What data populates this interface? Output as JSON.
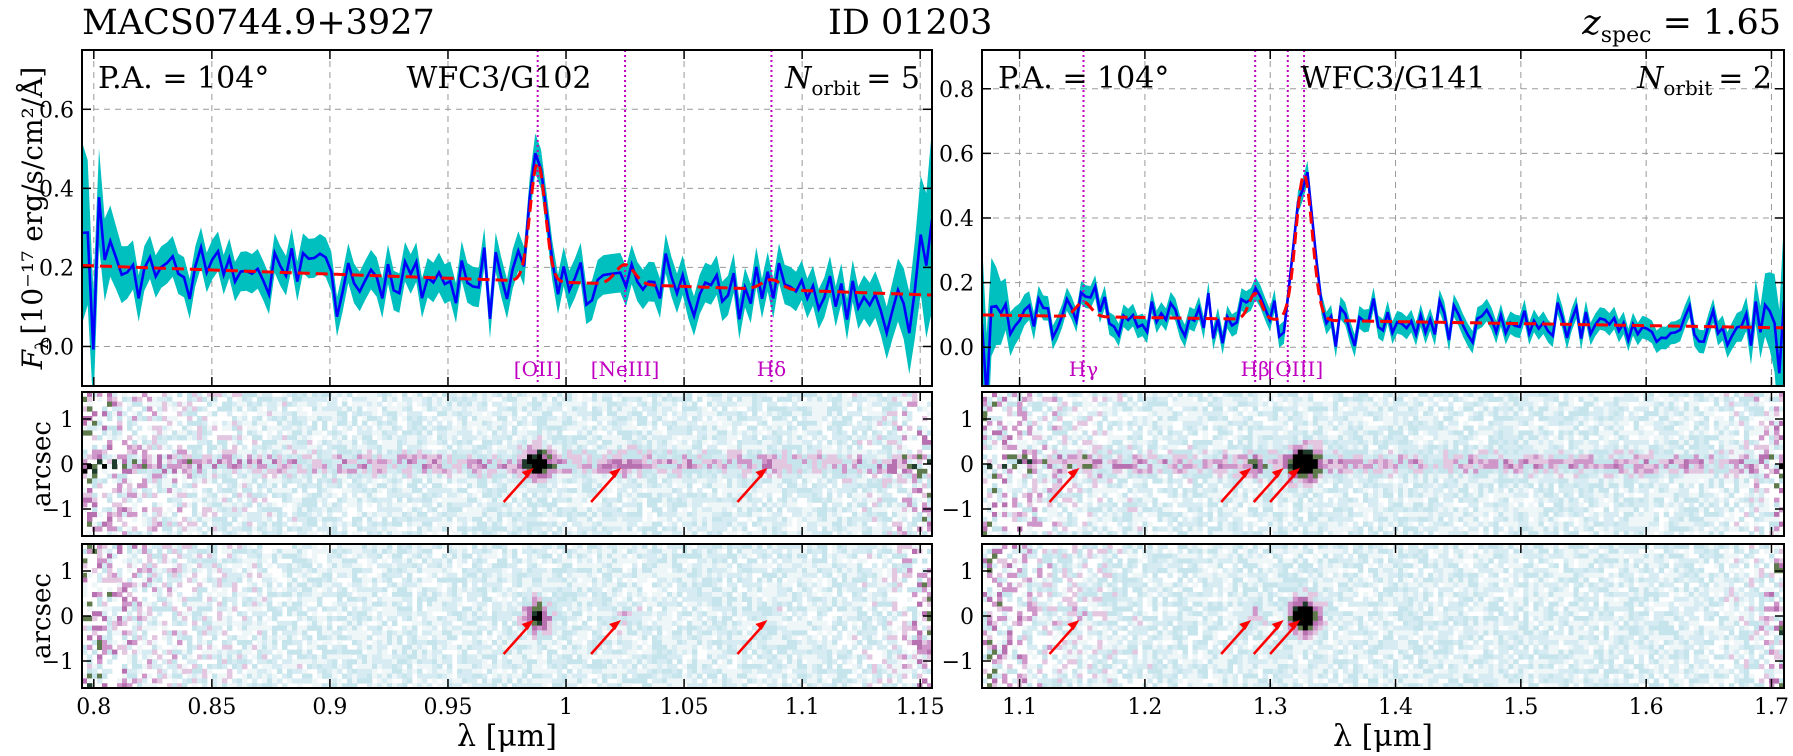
{
  "header": {
    "field": "MACS0744.9+3927",
    "id": "ID 01203",
    "zspec_label": "z",
    "zspec_sub": "spec",
    "zspec_value": "= 1.65"
  },
  "colors": {
    "band": "#00bfbf",
    "flux": "#0000ff",
    "model": "#ff0000",
    "line": "#c000c0",
    "arrow": "#ff0000",
    "grid": "#9a9a9a"
  },
  "chart_data": [
    {
      "panel": "left",
      "type": "line",
      "title": "WFC3/G102",
      "pa_label": "P.A. = 104°",
      "norbit_label": "N",
      "norbit_sub": "orbit",
      "norbit_value": "= 5",
      "ylabel": "F",
      "ylabel_sub": "λ",
      "ylabel_units": "[10⁻¹⁷ erg/s/cm²/Å]",
      "xlabel": "λ [μm]",
      "xlim": [
        0.795,
        1.155
      ],
      "ylim": [
        -0.1,
        0.75
      ],
      "xticks": [
        0.8,
        0.85,
        0.9,
        0.95,
        1.0,
        1.05,
        1.1,
        1.15
      ],
      "xtick_labels": [
        "0.8",
        "0.85",
        "0.9",
        "0.95",
        "1",
        "1.05",
        "1.1",
        "1.15"
      ],
      "yticks": [
        0.0,
        0.2,
        0.4,
        0.6
      ],
      "ytick_labels": [
        "0.0",
        "0.2",
        "0.4",
        "0.6"
      ],
      "continuum": {
        "type": "linear",
        "x0": 0.795,
        "y0": 0.205,
        "x1": 1.155,
        "y1": 0.13
      },
      "lines": [
        {
          "name": "[OII]",
          "x": 0.988,
          "amp": 0.3,
          "sigma": 0.0032
        },
        {
          "name": "[NeIII]",
          "x": 1.025,
          "amp": 0.05,
          "sigma": 0.004
        },
        {
          "name": "Hδ",
          "x": 1.087,
          "amp": 0.025,
          "sigma": 0.004
        }
      ],
      "error": {
        "base": 0.05,
        "edge_boost": 0.18,
        "edge_width": 0.008
      },
      "noise_seed": 7,
      "noise_amp": 0.06,
      "stamp_y_label": "arcsec",
      "stamp_yticks": [
        1,
        0,
        -1
      ],
      "stamp_ytick_labels": [
        "1",
        "0",
        "−1"
      ],
      "stamp_ylim": [
        -1.6,
        1.6
      ],
      "arrows_x": [
        0.988,
        1.025,
        1.087
      ]
    },
    {
      "panel": "right",
      "type": "line",
      "title": "WFC3/G141",
      "pa_label": "P.A. = 104°",
      "norbit_label": "N",
      "norbit_sub": "orbit",
      "norbit_value": "= 2",
      "ylabel": "",
      "xlabel": "λ [μm]",
      "xlim": [
        1.07,
        1.71
      ],
      "ylim": [
        -0.12,
        0.92
      ],
      "xticks": [
        1.1,
        1.2,
        1.3,
        1.4,
        1.5,
        1.6,
        1.7
      ],
      "xtick_labels": [
        "1.1",
        "1.2",
        "1.3",
        "1.4",
        "1.5",
        "1.6",
        "1.7"
      ],
      "yticks": [
        0.0,
        0.2,
        0.4,
        0.6,
        0.8
      ],
      "ytick_labels": [
        "0.0",
        "0.2",
        "0.4",
        "0.6",
        "0.8"
      ],
      "continuum": {
        "type": "linear",
        "x0": 1.07,
        "y0": 0.1,
        "x1": 1.71,
        "y1": 0.06
      },
      "lines": [
        {
          "name": "Hγ",
          "x": 1.151,
          "amp": 0.045,
          "sigma": 0.006
        },
        {
          "name": "Hβ",
          "x": 1.288,
          "amp": 0.08,
          "sigma": 0.005
        },
        {
          "name": "[OIII]",
          "x": 1.314,
          "amp": 0.0,
          "sigma": 0.005
        },
        {
          "name": "[OIII]",
          "x": 1.327,
          "amp": 0.45,
          "sigma": 0.0065
        }
      ],
      "line_labels": [
        {
          "text": "Hγ",
          "x": 1.151
        },
        {
          "text": "Hβ",
          "x": 1.288
        },
        {
          "text": "[OIII]",
          "x": 1.32
        }
      ],
      "error": {
        "base": 0.035,
        "edge_boost": 0.22,
        "edge_width": 0.012
      },
      "noise_seed": 13,
      "noise_amp": 0.045,
      "stamp_y_label": "arcsec",
      "stamp_yticks": [
        1,
        0,
        -1
      ],
      "stamp_ytick_labels": [
        "1",
        "0",
        "−1"
      ],
      "stamp_ylim": [
        -1.6,
        1.6
      ],
      "arrows_x": [
        1.151,
        1.288,
        1.314,
        1.327
      ]
    }
  ]
}
